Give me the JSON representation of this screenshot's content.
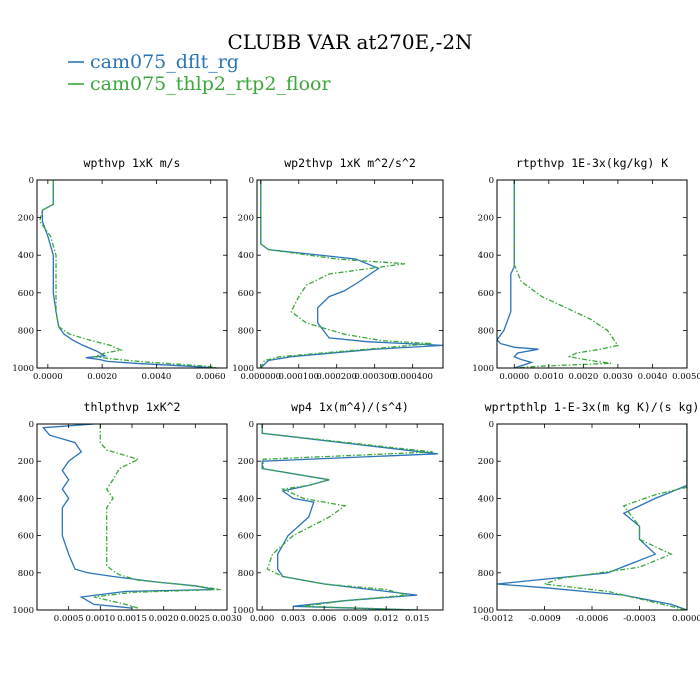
{
  "figure": {
    "title": "CLUBB VAR at270E,-2N",
    "legend": [
      {
        "label": "cam075_dflt_rg",
        "color": "#2a74b8",
        "dash": "solid"
      },
      {
        "label": "cam075_thlp2_rtp2_floor",
        "color": "#3aa83a",
        "dash": "dashed"
      }
    ]
  },
  "chart_data": [
    {
      "type": "line",
      "title": "wpthvp  1xK m/s",
      "xlim": [
        -0.0004,
        0.0066
      ],
      "ylim": [
        1000,
        0
      ],
      "xticks": [
        0.0,
        0.002,
        0.004,
        0.006
      ],
      "xtick_labels": [
        "0.0000",
        "0.0020",
        "0.0040",
        "0.0060"
      ],
      "yticks": [
        0,
        200,
        400,
        600,
        800,
        1000
      ],
      "series": [
        {
          "name": "cam075_dflt_rg",
          "x": [
            0.0002,
            0.0002,
            0.0002,
            -0.0002,
            -0.0002,
            0.0,
            0.0002,
            0.0002,
            0.0002,
            0.0003,
            0.0004,
            0.0006,
            0.0009,
            0.0013,
            0.0018,
            0.0021,
            0.0014,
            0.0019,
            0.0022,
            0.0032,
            0.0045,
            0.0055,
            0.0062
          ],
          "y": [
            0,
            80,
            130,
            160,
            220,
            300,
            400,
            500,
            600,
            700,
            780,
            820,
            850,
            880,
            910,
            935,
            945,
            955,
            965,
            975,
            985,
            993,
            1000
          ]
        },
        {
          "name": "cam075_thlp2_rtp2_floor",
          "x": [
            0.0002,
            0.0002,
            0.0002,
            -0.0002,
            -0.0003,
            0.0001,
            0.0003,
            0.0003,
            0.0003,
            0.0003,
            0.0004,
            0.0008,
            0.0015,
            0.0023,
            0.0027,
            0.0021,
            0.0017,
            0.0026,
            0.0036,
            0.0048,
            0.0058,
            0.0063
          ],
          "y": [
            0,
            80,
            130,
            160,
            220,
            300,
            400,
            500,
            600,
            700,
            780,
            820,
            850,
            880,
            905,
            920,
            940,
            955,
            968,
            980,
            990,
            1000
          ]
        }
      ]
    },
    {
      "type": "line",
      "title": "wp2thvp  1xK m^2/s^2",
      "xlim": [
        -1e-05,
        0.00048
      ],
      "ylim": [
        1000,
        0
      ],
      "xticks": [
        0.0,
        0.0001,
        0.0002,
        0.0003,
        0.0004
      ],
      "xtick_labels": [
        "0.000000",
        "0.000100",
        "0.000200",
        "0.000300",
        "0.000400"
      ],
      "yticks": [
        0,
        200,
        400,
        600,
        800,
        1000
      ],
      "series": [
        {
          "name": "cam075_dflt_rg",
          "x": [
            0.0,
            0.0,
            0.0,
            2e-05,
            0.00025,
            0.00031,
            0.00026,
            0.00022,
            0.00018,
            0.00015,
            0.00015,
            0.00018,
            0.00028,
            0.00048,
            0.0003,
            8e-05,
            2e-05,
            0.0
          ],
          "y": [
            0,
            200,
            340,
            370,
            420,
            470,
            540,
            590,
            620,
            680,
            760,
            840,
            860,
            880,
            900,
            940,
            960,
            1000
          ]
        },
        {
          "name": "cam075_thlp2_rtp2_floor",
          "x": [
            0.0,
            0.0,
            0.0,
            2e-05,
            0.0002,
            0.00038,
            0.00018,
            0.00012,
            0.0001,
            8e-05,
            0.00012,
            0.00022,
            0.00032,
            0.00045,
            0.00028,
            5e-05,
            1e-05,
            0.0
          ],
          "y": [
            0,
            200,
            340,
            370,
            420,
            445,
            500,
            560,
            620,
            700,
            760,
            820,
            855,
            870,
            900,
            940,
            960,
            1000
          ]
        }
      ]
    },
    {
      "type": "line",
      "title": "rtpthvp  1E-3x(kg/kg) K",
      "xlim": [
        -0.0005,
        0.005
      ],
      "ylim": [
        1000,
        0
      ],
      "xticks": [
        0.0,
        0.001,
        0.002,
        0.003,
        0.004,
        0.005
      ],
      "xtick_labels": [
        "0.0000",
        "0.0010",
        "0.0020",
        "0.0030",
        "0.0040",
        "0.0050"
      ],
      "yticks": [
        0,
        200,
        400,
        600,
        800,
        1000
      ],
      "series": [
        {
          "name": "cam075_dflt_rg",
          "x": [
            0.0,
            0.0,
            0.0,
            -0.0001,
            -0.0001,
            -0.0001,
            -0.0003,
            -0.0005,
            -0.0004,
            -0.0002,
            0.0,
            0.0007,
            0.0001,
            0.0,
            0.0002,
            0.0005,
            0.0
          ],
          "y": [
            0,
            400,
            460,
            500,
            600,
            700,
            800,
            850,
            870,
            880,
            890,
            900,
            920,
            940,
            955,
            970,
            1000
          ]
        },
        {
          "name": "cam075_thlp2_rtp2_floor",
          "x": [
            0.0,
            0.0,
            0.0,
            0.0002,
            0.0008,
            0.0015,
            0.0022,
            0.0027,
            0.003,
            0.0025,
            0.0018,
            0.0016,
            0.0022,
            0.0028,
            0.0008,
            0.0
          ],
          "y": [
            0,
            300,
            450,
            540,
            620,
            680,
            740,
            800,
            880,
            900,
            920,
            940,
            960,
            975,
            990,
            1000
          ]
        }
      ]
    },
    {
      "type": "line",
      "title": "thlpthvp  1xK^2",
      "xlim": [
        0.0,
        0.003
      ],
      "ylim": [
        1000,
        0
      ],
      "xticks": [
        0.0005,
        0.001,
        0.0015,
        0.002,
        0.0025,
        0.003
      ],
      "xtick_labels": [
        "0.0005",
        "0.0010",
        "0.0015",
        "0.0020",
        "0.0025",
        "0.0030"
      ],
      "yticks": [
        0,
        200,
        400,
        600,
        800,
        1000
      ],
      "series": [
        {
          "name": "cam075_dflt_rg",
          "x": [
            0.0009,
            0.0001,
            0.0002,
            0.0004,
            0.0006,
            0.0007,
            0.0005,
            0.0004,
            0.0005,
            0.0004,
            0.0005,
            0.0004,
            0.0004,
            0.0004,
            0.0005,
            0.0006,
            0.0008,
            0.0012,
            0.0019,
            0.0025,
            0.0028,
            0.0014,
            0.0007,
            0.0009,
            0.0015
          ],
          "y": [
            0,
            20,
            60,
            80,
            100,
            150,
            200,
            250,
            300,
            350,
            400,
            450,
            500,
            600,
            700,
            780,
            800,
            820,
            850,
            870,
            890,
            900,
            930,
            970,
            990
          ]
        },
        {
          "name": "cam075_thlp2_rtp2_floor",
          "x": [
            0.001,
            0.001,
            0.0011,
            0.0014,
            0.0016,
            0.0013,
            0.0012,
            0.0011,
            0.0012,
            0.0011,
            0.0011,
            0.0011,
            0.0011,
            0.0011,
            0.0012,
            0.0013,
            0.0016,
            0.0022,
            0.0026,
            0.0029,
            0.0015,
            0.0009,
            0.0014,
            0.0016
          ],
          "y": [
            0,
            100,
            140,
            170,
            190,
            240,
            300,
            350,
            400,
            450,
            500,
            600,
            700,
            760,
            790,
            810,
            840,
            860,
            875,
            890,
            905,
            930,
            970,
            990
          ]
        }
      ]
    },
    {
      "type": "line",
      "title": "wp4  1x(m^4)/(s^4)",
      "xlim": [
        -0.0005,
        0.0175
      ],
      "ylim": [
        1000,
        0
      ],
      "xticks": [
        0.0,
        0.003,
        0.006,
        0.009,
        0.012,
        0.015
      ],
      "xtick_labels": [
        "0.000",
        "0.003",
        "0.006",
        "0.009",
        "0.012",
        "0.015"
      ],
      "yticks": [
        0,
        200,
        400,
        600,
        800,
        1000
      ],
      "series": [
        {
          "name": "cam075_dflt_rg",
          "x": [
            0.0,
            0.0,
            0.017,
            0.0,
            0.0,
            0.0065,
            0.0045,
            0.002,
            0.003,
            0.005,
            0.0045,
            0.0025,
            0.0015,
            0.0015,
            0.002,
            0.006,
            0.012,
            0.015,
            0.008,
            0.003,
            0.015
          ],
          "y": [
            0,
            50,
            160,
            200,
            240,
            300,
            330,
            360,
            400,
            420,
            500,
            600,
            700,
            780,
            820,
            860,
            900,
            920,
            950,
            980,
            1000
          ]
        },
        {
          "name": "cam075_thlp2_rtp2_floor",
          "x": [
            0.0,
            0.0,
            0.0165,
            0.0001,
            0.0001,
            0.0065,
            0.0045,
            0.002,
            0.004,
            0.008,
            0.0065,
            0.003,
            0.001,
            0.0005,
            0.002,
            0.006,
            0.012,
            0.014,
            0.008,
            0.004,
            0.015
          ],
          "y": [
            0,
            50,
            150,
            190,
            240,
            300,
            330,
            350,
            400,
            440,
            500,
            600,
            700,
            780,
            820,
            860,
            890,
            920,
            950,
            980,
            1000
          ]
        }
      ]
    },
    {
      "type": "line",
      "title": "wprtpthlp  1-E-3x(m kg K)/(s kg)",
      "xlim": [
        -0.0012,
        0.0
      ],
      "ylim": [
        1000,
        0
      ],
      "xticks": [
        -0.0012,
        -0.0009,
        -0.0006,
        -0.0003,
        0.0
      ],
      "xtick_labels": [
        "-0.0012",
        "-0.0009",
        "-0.0006",
        "-0.0003",
        "0.0000"
      ],
      "yticks": [
        0,
        200,
        400,
        600,
        800,
        1000
      ],
      "series": [
        {
          "name": "cam075_dflt_rg",
          "x": [
            0.0,
            0.0,
            0.0,
            -0.0002,
            -0.0004,
            -0.0003,
            -0.0003,
            -0.0002,
            -0.0005,
            -0.0012,
            -0.0009,
            -0.0004,
            -0.0001,
            0.0
          ],
          "y": [
            0,
            200,
            330,
            400,
            480,
            550,
            620,
            700,
            800,
            860,
            880,
            920,
            970,
            1000
          ]
        },
        {
          "name": "cam075_thlp2_rtp2_floor",
          "x": [
            0.0,
            0.0,
            0.0,
            -0.0002,
            -0.0004,
            -0.0003,
            -0.0003,
            -0.0001,
            -0.0003,
            -0.0008,
            -0.0009,
            -0.0005,
            -0.0002,
            0.0
          ],
          "y": [
            0,
            200,
            340,
            380,
            440,
            550,
            620,
            700,
            770,
            830,
            860,
            900,
            960,
            1000
          ]
        }
      ]
    }
  ]
}
